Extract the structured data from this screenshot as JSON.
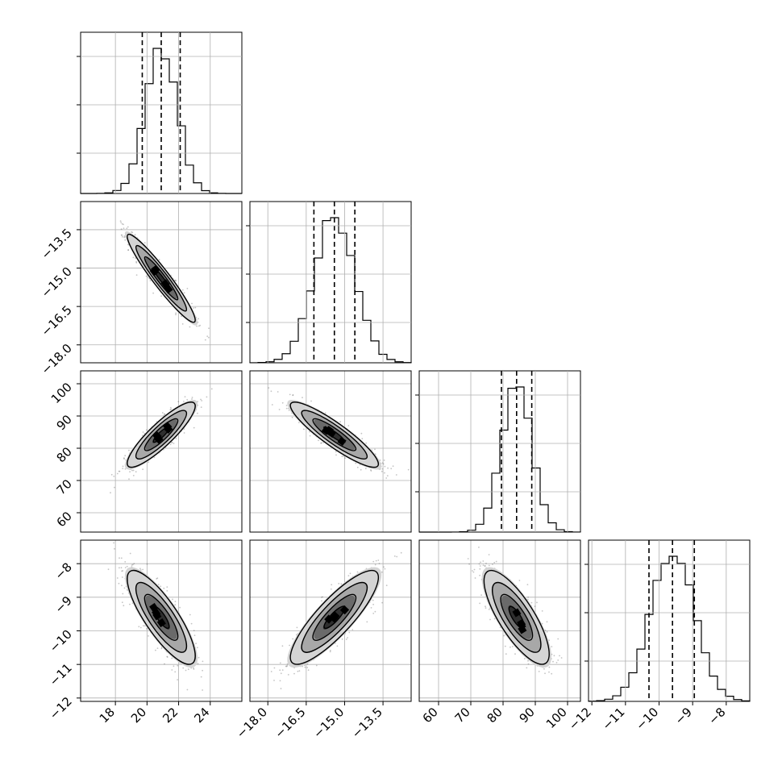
{
  "chart_data": {
    "type": "corner",
    "title": "",
    "grid": true,
    "parameters": [
      {
        "name": "",
        "range": [
          15.8,
          26.0
        ],
        "ticks": [
          18,
          20,
          22,
          24
        ],
        "tick_labels": [
          "18",
          "20",
          "22",
          "24"
        ],
        "quantiles": [
          19.7,
          20.9,
          22.1
        ],
        "mean": 20.9,
        "sd": 1.0
      },
      {
        "name": "",
        "range": [
          -18.7,
          -12.4
        ],
        "ticks": [
          -18.0,
          -16.5,
          -15.0,
          -13.5
        ],
        "tick_labels": [
          "−18.0",
          "−16.5",
          "−15.0",
          "−13.5"
        ],
        "quantiles": [
          -16.2,
          -15.4,
          -14.6
        ],
        "mean": -15.4,
        "sd": 0.8
      },
      {
        "name": "",
        "range": [
          54,
          104
        ],
        "ticks": [
          60,
          70,
          80,
          90,
          100
        ],
        "tick_labels": [
          "60",
          "70",
          "80",
          "90",
          "100"
        ],
        "quantiles": [
          79.5,
          84.2,
          88.9
        ],
        "mean": 84.2,
        "sd": 4.7
      },
      {
        "name": "",
        "range": [
          -12.1,
          -7.3
        ],
        "ticks": [
          -12,
          -11,
          -10,
          -9,
          -8
        ],
        "tick_labels": [
          "−12",
          "−11",
          "−10",
          "−9",
          "−8"
        ],
        "quantiles": [
          -10.3,
          -9.6,
          -8.95
        ],
        "mean": -9.6,
        "sd": 0.65
      }
    ],
    "correlations": [
      {
        "pair": [
          0,
          1
        ],
        "rho": -0.95
      },
      {
        "pair": [
          0,
          2
        ],
        "rho": 0.88
      },
      {
        "pair": [
          1,
          2
        ],
        "rho": -0.9
      },
      {
        "pair": [
          0,
          3
        ],
        "rho": -0.82
      },
      {
        "pair": [
          1,
          3
        ],
        "rho": 0.85
      },
      {
        "pair": [
          2,
          3
        ],
        "rho": -0.78
      }
    ],
    "contour_levels_sigma": [
      0.5,
      1.0,
      1.5,
      2.0
    ],
    "histogram_bins": 20,
    "line_style": {
      "contour_color": "#000000",
      "quantile_dash": "6,4"
    }
  }
}
